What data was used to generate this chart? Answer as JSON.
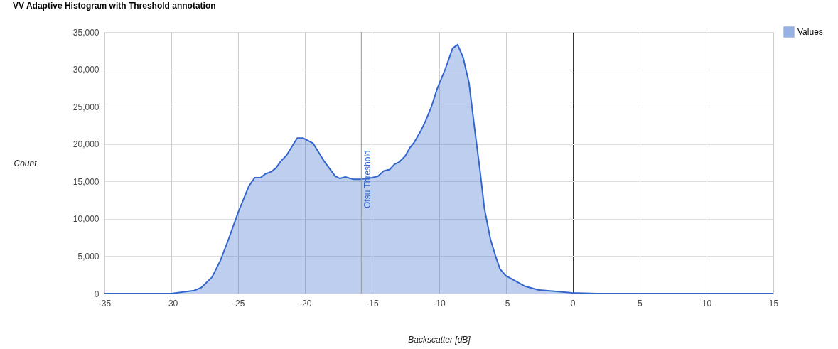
{
  "chart_data": {
    "type": "area",
    "title": "VV Adaptive Histogram with Threshold annotation",
    "xlabel": "Backscatter [dB]",
    "ylabel": "Count",
    "x": [
      -35,
      -32,
      -30,
      -28.3,
      -27.76,
      -26.96,
      -26.34,
      -25.72,
      -25.0,
      -24.2,
      -23.77,
      -23.33,
      -22.98,
      -22.53,
      -22.18,
      -21.82,
      -21.39,
      -20.94,
      -20.59,
      -20.14,
      -19.4,
      -18.54,
      -17.75,
      -17.4,
      -16.99,
      -16.42,
      -15.8,
      -15.0,
      -14.56,
      -14.12,
      -13.68,
      -13.32,
      -12.96,
      -12.52,
      -12.17,
      -11.82,
      -11.37,
      -11.02,
      -10.58,
      -10.13,
      -9.51,
      -8.98,
      -8.6,
      -8.19,
      -7.75,
      -7.31,
      -6.95,
      -6.6,
      -6.15,
      -5.8,
      -5.44,
      -5.0,
      -4.2,
      -3.6,
      -2.6,
      -1.37,
      -0.04,
      1.8,
      5,
      10,
      15
    ],
    "series": [
      {
        "name": "Values",
        "color": "#3366cc",
        "values": [
          0,
          0,
          0,
          400,
          800,
          2200,
          4400,
          7300,
          10900,
          14400,
          15500,
          15500,
          16000,
          16300,
          16800,
          17700,
          18500,
          19800,
          20800,
          20800,
          20100,
          17600,
          15700,
          15400,
          15600,
          15300,
          15300,
          15500,
          15700,
          16400,
          16600,
          17300,
          17600,
          18400,
          19500,
          20300,
          21700,
          23000,
          24900,
          27400,
          30100,
          32800,
          33300,
          31600,
          28200,
          21800,
          16800,
          11400,
          7300,
          5200,
          3300,
          2400,
          1600,
          1000,
          500,
          300,
          100,
          0,
          0,
          0,
          0
        ]
      }
    ],
    "xlim": [
      -35,
      15
    ],
    "xticks": [
      -35,
      -30,
      -25,
      -20,
      -15,
      -10,
      -5,
      0,
      5,
      10,
      15
    ],
    "ylim": [
      0,
      35000
    ],
    "yticks": [
      0,
      {
        "value": 5000,
        "label": "5,000"
      },
      {
        "value": 10000,
        "label": "10,000"
      },
      {
        "value": 15000,
        "label": "15,000"
      },
      {
        "value": 20000,
        "label": "20,000"
      },
      {
        "value": 25000,
        "label": "25,000"
      },
      {
        "value": 30000,
        "label": "30,000"
      },
      {
        "value": 35000,
        "label": "35,000"
      }
    ],
    "ref_lines": [
      {
        "axis": "x",
        "value": -15.8,
        "label": "Otsu Threshold"
      }
    ],
    "grid": true,
    "legend": "top right"
  }
}
